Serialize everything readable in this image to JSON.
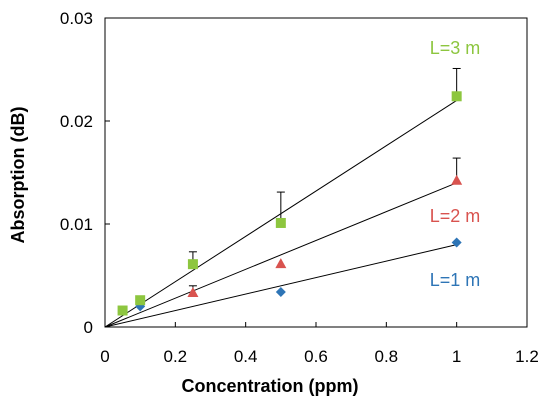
{
  "chart_data": {
    "type": "scatter",
    "xlabel": "Concentration (ppm)",
    "ylabel": "Absorption (dB)",
    "xlim": [
      0,
      1.2
    ],
    "ylim": [
      0,
      0.03
    ],
    "xticks": [
      "0",
      "0.2",
      "0.4",
      "0.6",
      "0.8",
      "1",
      "1.2"
    ],
    "yticks": [
      "0",
      "0.01",
      "0.02",
      "0.03"
    ],
    "grid": false,
    "series": [
      {
        "name": "L=1 m",
        "marker": "diamond",
        "color": "#2E75B6",
        "x": [
          0.1,
          0.5,
          1.0
        ],
        "y": [
          0.002,
          0.0034,
          0.0082
        ],
        "error": [
          0,
          0,
          0
        ],
        "fit_end": [
          1.0,
          0.008
        ]
      },
      {
        "name": "L=2 m",
        "marker": "triangle",
        "color": "#D9534F",
        "x": [
          0.25,
          0.5,
          1.0
        ],
        "y": [
          0.0033,
          0.0061,
          0.0142
        ],
        "error": [
          0.0007,
          0,
          0.0022
        ],
        "fit_end": [
          1.0,
          0.014
        ]
      },
      {
        "name": "L=3 m",
        "marker": "square",
        "color": "#8DC63F",
        "x": [
          0.05,
          0.1,
          0.25,
          0.5,
          1.0
        ],
        "y": [
          0.0016,
          0.0026,
          0.0061,
          0.0101,
          0.0224
        ],
        "error": [
          0,
          0,
          0.0012,
          0.003,
          0.0027
        ],
        "fit_end": [
          1.0,
          0.022
        ]
      }
    ]
  }
}
